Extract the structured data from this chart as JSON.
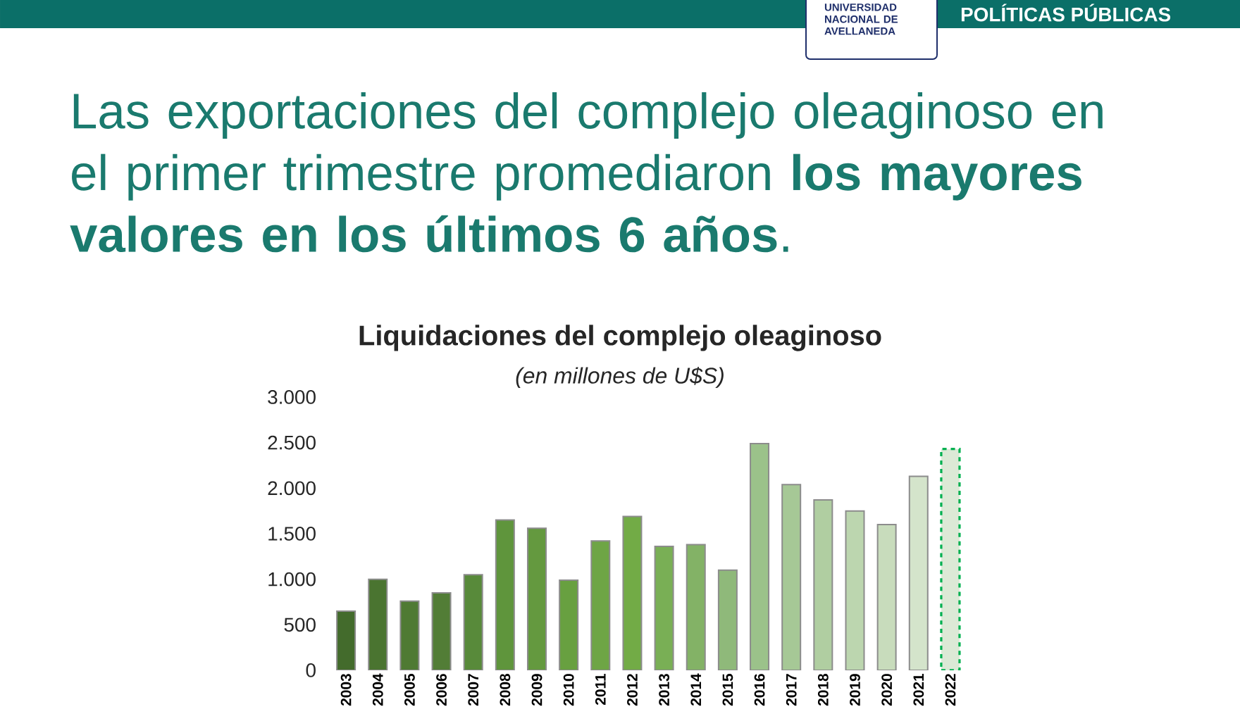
{
  "chart_data": {
    "type": "bar",
    "title": "Las exportaciones del complejo oleaginoso en el primer trimestre promediaron **los mayores valores en los últimos 6 años**.",
    "subtitle": "Liquidaciones del complejo oleaginoso",
    "ylabel": "(en millones de U$S)",
    "annotations": [
      "UNIVERSIDAD NACIONAL DE AVELLANEDA",
      "POLÍTICAS PÚBLICAS"
    ],
    "categories": [
      "2003",
      "2004",
      "2005",
      "2006",
      "2007",
      "2008",
      "2009",
      "2010",
      "2011",
      "2012",
      "2013",
      "2014",
      "2015",
      "2016",
      "2017",
      "2018",
      "2019",
      "2020",
      "2021",
      "2022"
    ],
    "series": [
      {
        "values": [
          650,
          1000,
          760,
          850,
          1050,
          1650,
          1560,
          990,
          1420,
          1690,
          1360,
          1380,
          1100,
          2490,
          2040,
          1870,
          1750,
          1600,
          2130,
          null
        ],
        "colors": [
          "#436b2c",
          "#4a7430",
          "#4f7a33",
          "#527d36",
          "#588a3a",
          "#5f953c",
          "#64993f",
          "#68a040",
          "#6ea545",
          "#72ab46",
          "#79af55",
          "#83b266",
          "#8fb97a",
          "#9bc28a",
          "#a6c896",
          "#b0cea1",
          "#bcd6af",
          "#c8dcbc",
          "#d4e4cb",
          "#dce9d6"
        ],
        "line_style": "solid"
      },
      {
        "values": [
          null,
          null,
          null,
          null,
          null,
          null,
          null,
          null,
          null,
          null,
          null,
          null,
          null,
          null,
          null,
          null,
          null,
          null,
          null,
          2430
        ],
        "color": "#dce9d6",
        "line_style": "dashed"
      }
    ],
    "ylim": [
      0,
      3000
    ],
    "yticks": [
      0,
      500,
      {
        "value": 1000,
        "label": "1.000"
      },
      {
        "value": 1500,
        "label": "1.500"
      },
      {
        "value": 2000,
        "label": "2.000"
      },
      {
        "value": 2500,
        "label": "2.500"
      },
      {
        "value": 3000,
        "label": "3.000"
      }
    ]
  }
}
